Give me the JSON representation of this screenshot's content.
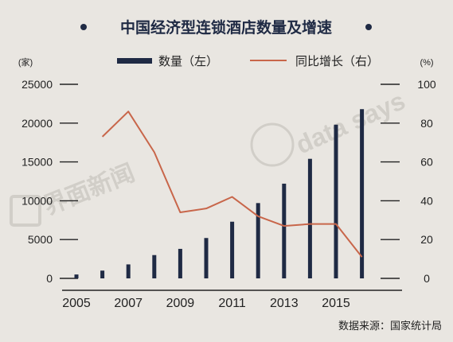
{
  "title": "中国经济型连锁酒店数量及增速",
  "units": {
    "left": "(家)",
    "right": "(%)"
  },
  "legend": {
    "bars": "数量（左）",
    "line": "同比增长（右）"
  },
  "source": "数据来源：国家统计局",
  "watermarks": {
    "left": "界面新闻",
    "right": "data says"
  },
  "colors": {
    "background": "#e9e6e1",
    "bars": "#1f2a44",
    "line": "#c8664a",
    "text": "#1f2a44"
  },
  "chart_data": {
    "type": "bar",
    "categories": [
      "2005",
      "2006",
      "2007",
      "2008",
      "2009",
      "2010",
      "2011",
      "2012",
      "2013",
      "2014",
      "2015",
      "2016"
    ],
    "x_tick_labels": [
      "2005",
      "2007",
      "2009",
      "2011",
      "2013",
      "2015"
    ],
    "series": [
      {
        "name": "数量（左）",
        "type": "bar",
        "axis": "left",
        "values": [
          500,
          1000,
          1800,
          3000,
          3800,
          5200,
          7300,
          9700,
          12200,
          15400,
          19800,
          21800
        ]
      },
      {
        "name": "同比增长（右）",
        "type": "line",
        "axis": "right",
        "values": [
          null,
          73,
          86,
          65,
          34,
          36,
          42,
          32,
          27,
          28,
          28,
          11
        ]
      }
    ],
    "ylim_left": [
      0,
      25000
    ],
    "yticks_left": [
      0,
      5000,
      10000,
      15000,
      20000,
      25000
    ],
    "ylim_right": [
      0,
      100
    ],
    "yticks_right": [
      0,
      20,
      40,
      60,
      80,
      100
    ],
    "grid": false,
    "legend_position": "top"
  }
}
